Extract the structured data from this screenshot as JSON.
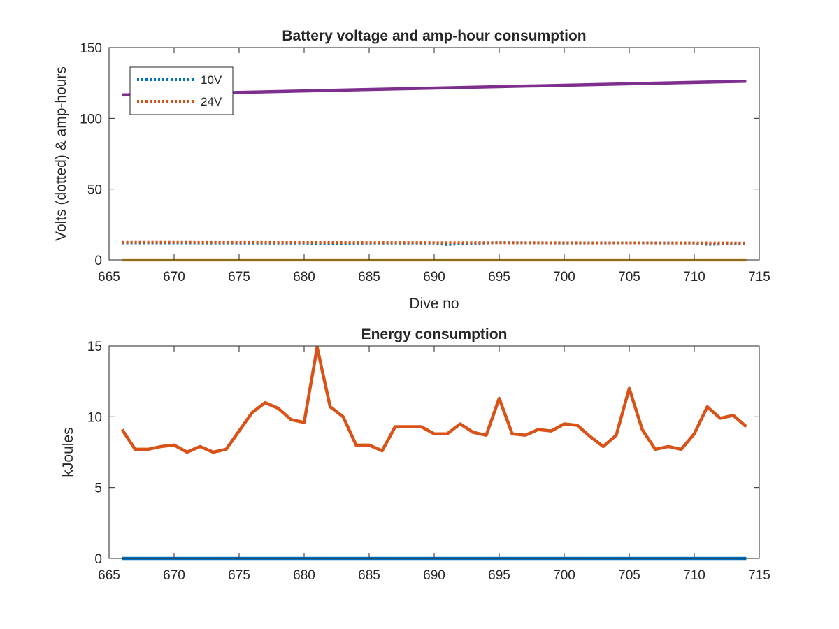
{
  "chart_data": [
    {
      "type": "line",
      "title": "Battery voltage and amp-hour consumption",
      "xlabel": "Dive no",
      "ylabel": "Volts (dotted) & amp-hours",
      "xlim": [
        665,
        715
      ],
      "ylim": [
        0,
        150
      ],
      "xticks": [
        665,
        670,
        675,
        680,
        685,
        690,
        695,
        700,
        705,
        710,
        715
      ],
      "yticks": [
        0,
        50,
        100,
        150
      ],
      "legend": {
        "position": "top-left",
        "entries": [
          "10V",
          "24V"
        ]
      },
      "grid": false,
      "series": [
        {
          "name": "10V",
          "style": "dotted",
          "color": "#0072BD",
          "x": [
            666,
            670,
            675,
            680,
            681,
            685,
            690,
            691,
            692,
            695,
            700,
            705,
            710,
            711,
            714
          ],
          "y": [
            12.1,
            12.1,
            12.0,
            12.0,
            11.6,
            12.0,
            12.0,
            10.8,
            11.5,
            12.3,
            12.0,
            12.1,
            12.0,
            11.0,
            11.8
          ]
        },
        {
          "name": "24V",
          "style": "dotted",
          "color": "#D95319",
          "x": [
            666,
            714
          ],
          "y": [
            12.5,
            12.0
          ]
        },
        {
          "style": "solid",
          "color": "#7E2F8E",
          "x": [
            666,
            714
          ],
          "y": [
            116.5,
            126.2
          ]
        },
        {
          "style": "solid",
          "color": "#EDB120",
          "x": [
            666,
            714
          ],
          "y": [
            0,
            0
          ]
        }
      ]
    },
    {
      "type": "line",
      "title": "Energy consumption",
      "xlabel": "",
      "ylabel": "kJoules",
      "xlim": [
        665,
        715
      ],
      "ylim": [
        0,
        15
      ],
      "xticks": [
        665,
        670,
        675,
        680,
        685,
        690,
        695,
        700,
        705,
        710,
        715
      ],
      "yticks": [
        0,
        5,
        10,
        15
      ],
      "grid": false,
      "series": [
        {
          "style": "solid",
          "color": "#D95319",
          "x": [
            666,
            667,
            668,
            669,
            670,
            671,
            672,
            673,
            674,
            675,
            676,
            677,
            678,
            679,
            680,
            681,
            682,
            683,
            684,
            685,
            686,
            687,
            688,
            689,
            690,
            691,
            692,
            693,
            694,
            695,
            696,
            697,
            698,
            699,
            700,
            701,
            702,
            703,
            704,
            705,
            706,
            707,
            708,
            709,
            710,
            711,
            712,
            713,
            714
          ],
          "y": [
            9.1,
            7.7,
            7.7,
            7.9,
            8.0,
            7.5,
            7.9,
            7.5,
            7.7,
            9.0,
            10.3,
            11.0,
            10.6,
            9.8,
            9.6,
            14.9,
            10.7,
            10.0,
            8.0,
            8.0,
            7.6,
            9.3,
            9.3,
            9.3,
            8.8,
            8.8,
            9.5,
            8.9,
            8.7,
            11.3,
            8.8,
            8.7,
            9.1,
            9.0,
            9.5,
            9.4,
            8.6,
            7.9,
            8.7,
            12.0,
            9.1,
            7.7,
            7.9,
            7.7,
            8.8,
            10.7,
            9.9,
            10.1,
            9.3
          ]
        },
        {
          "style": "solid",
          "color": "#0072BD",
          "x": [
            666,
            714
          ],
          "y": [
            0,
            0
          ]
        }
      ]
    }
  ]
}
